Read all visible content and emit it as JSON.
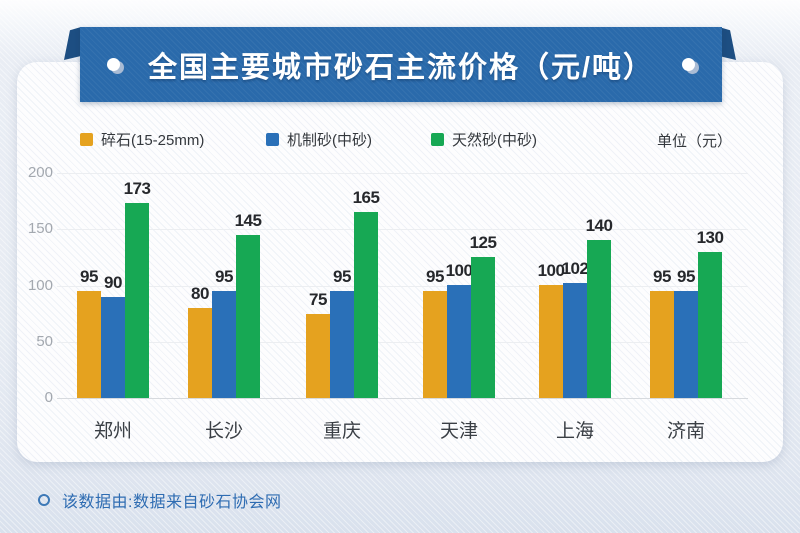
{
  "banner": {
    "title": "全国主要城市砂石主流价格（元/吨）"
  },
  "legend": {
    "items": [
      {
        "label": "碎石(15-25mm)",
        "color": "#E5A21F"
      },
      {
        "label": "机制砂(中砂)",
        "color": "#2A70B8"
      },
      {
        "label": "天然砂(中砂)",
        "color": "#17A854"
      }
    ],
    "unit_label": "单位（元）"
  },
  "chart_data": {
    "type": "bar",
    "title": "全国主要城市砂石主流价格（元/吨）",
    "categories": [
      "郑州",
      "长沙",
      "重庆",
      "天津",
      "上海",
      "济南"
    ],
    "series": [
      {
        "name": "碎石(15-25mm)",
        "color": "#E5A21F",
        "values": [
          95,
          80,
          75,
          95,
          100,
          95
        ]
      },
      {
        "name": "机制砂(中砂)",
        "color": "#2A70B8",
        "values": [
          90,
          95,
          95,
          100,
          102,
          95
        ]
      },
      {
        "name": "天然砂(中砂)",
        "color": "#17A854",
        "values": [
          173,
          145,
          165,
          125,
          140,
          130
        ]
      }
    ],
    "ylabel": "",
    "xlabel": "",
    "unit": "元",
    "ylim": [
      0,
      200
    ],
    "yticks": [
      0,
      50,
      100,
      150,
      200
    ],
    "grid": true,
    "legend_position": "top",
    "value_labels": true
  },
  "footer": {
    "text": "该数据由:数据来自砂石协会网"
  },
  "colors": {
    "banner_bg": "#2A6AAB",
    "banner_fold": "#1D4E82",
    "card_bg": "#FDFDFE",
    "page_bg": "#E7ECF3",
    "footer_text": "#2E6CB2",
    "tick_text": "#A3A8AF",
    "category_text": "#3A3F45",
    "value_text": "#26282C"
  }
}
